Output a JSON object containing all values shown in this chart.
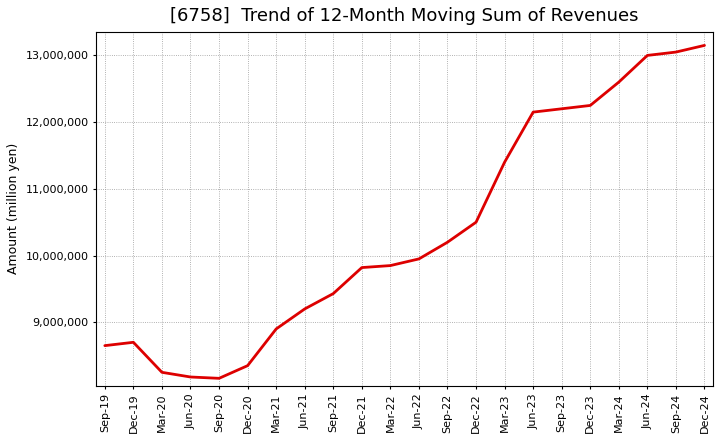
{
  "title": "[6758]  Trend of 12-Month Moving Sum of Revenues",
  "ylabel": "Amount (million yen)",
  "line_color": "#dd0000",
  "line_width": 2.0,
  "background_color": "#ffffff",
  "grid_color": "#999999",
  "x_labels": [
    "Sep-19",
    "Dec-19",
    "Mar-20",
    "Jun-20",
    "Sep-20",
    "Dec-20",
    "Mar-21",
    "Jun-21",
    "Sep-21",
    "Dec-21",
    "Mar-22",
    "Jun-22",
    "Sep-22",
    "Dec-22",
    "Mar-23",
    "Jun-23",
    "Sep-23",
    "Dec-23",
    "Mar-24",
    "Jun-24",
    "Sep-24",
    "Dec-24"
  ],
  "values": [
    8650000,
    8700000,
    8250000,
    8180000,
    8160000,
    8350000,
    8900000,
    9200000,
    9430000,
    9820000,
    9850000,
    9950000,
    10200000,
    10500000,
    11400000,
    12150000,
    12200000,
    12250000,
    12600000,
    13000000,
    13050000,
    13150000
  ],
  "ylim_min": 8050000,
  "ylim_max": 13350000,
  "yticks": [
    9000000,
    10000000,
    11000000,
    12000000,
    13000000
  ],
  "title_fontsize": 13,
  "label_fontsize": 9,
  "tick_fontsize": 8
}
